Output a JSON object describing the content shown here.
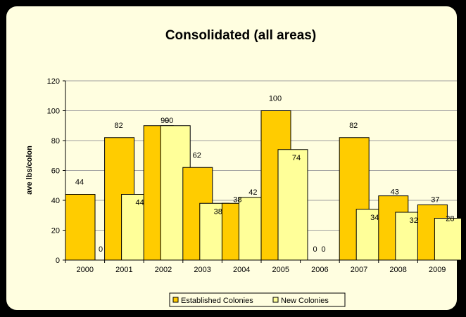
{
  "chart_data": {
    "type": "bar",
    "title": "Consolidated (all areas)",
    "ylabel": "ave lbs/colon",
    "xlabel": "",
    "ylim": [
      0,
      120
    ],
    "yticks": [
      0,
      20,
      40,
      60,
      80,
      100,
      120
    ],
    "grid": true,
    "legend_position": "bottom",
    "categories": [
      "2000",
      "2001",
      "2002",
      "2003",
      "2004",
      "2005",
      "2006",
      "2007",
      "2008",
      "2009"
    ],
    "series": [
      {
        "name": "Established Colonies",
        "color": "#ffcc00",
        "values": [
          44,
          82,
          90,
          62,
          38,
          100,
          0,
          82,
          43,
          37
        ]
      },
      {
        "name": "New Colonies",
        "color": "#ffff99",
        "values": [
          0,
          44,
          90,
          38,
          42,
          74,
          0,
          34,
          32,
          28
        ]
      }
    ]
  }
}
